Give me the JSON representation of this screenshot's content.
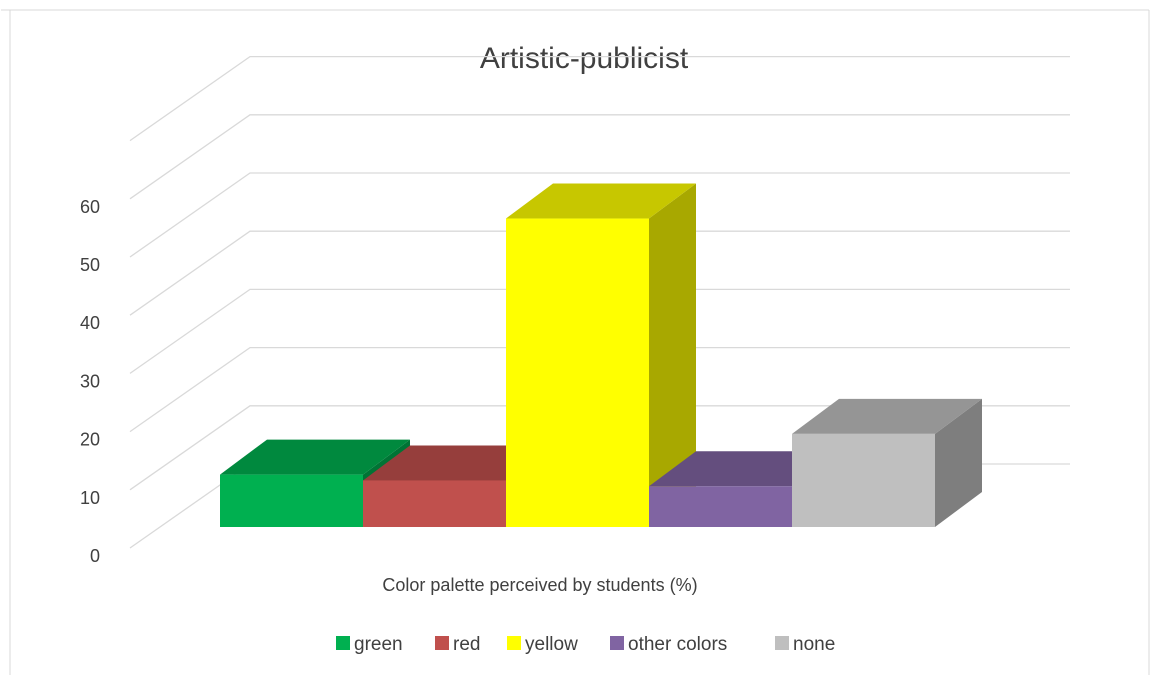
{
  "chart_data": {
    "type": "bar",
    "title": "Artistic-publicist",
    "xlabel": "Color palette perceived by students (%)",
    "ylabel": "",
    "ylim": [
      0,
      60
    ],
    "yticks": [
      0,
      10,
      20,
      30,
      40,
      50,
      60
    ],
    "grid": true,
    "legend_position": "bottom",
    "categories": [
      "green",
      "red",
      "yellow",
      "other colors",
      "none"
    ],
    "values": [
      9,
      8,
      53,
      7,
      16
    ],
    "colors": [
      "#00b050",
      "#c0504d",
      "#ffff00",
      "#8064a2",
      "#bfbfbf"
    ]
  }
}
